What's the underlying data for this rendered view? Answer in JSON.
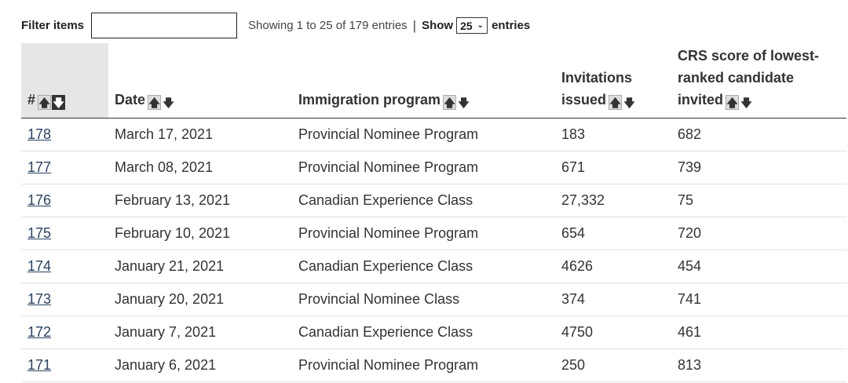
{
  "filter": {
    "label": "Filter items",
    "value": ""
  },
  "info": {
    "showing": "Showing 1 to 25 of 179 entries",
    "separator": "|",
    "show_label": "Show",
    "page_size": "25",
    "entries_label": "entries"
  },
  "headers": {
    "num": "#",
    "date": "Date",
    "program": "Immigration program",
    "invitations_line1": "Invitations",
    "invitations_line2": "issued",
    "crs_line1": "CRS score of lowest-",
    "crs_line2": "ranked candidate",
    "crs_line3": "invited"
  },
  "icons": {
    "up": "arrow-up-icon",
    "down": "arrow-down-icon",
    "select": "chevron-down-icon"
  },
  "rows": [
    {
      "num": "178",
      "date": "March 17, 2021",
      "program": "Provincial Nominee Program",
      "invitations": "183",
      "crs": "682"
    },
    {
      "num": "177",
      "date": "March 08, 2021",
      "program": "Provincial Nominee Program",
      "invitations": "671",
      "crs": "739"
    },
    {
      "num": "176",
      "date": "February 13, 2021",
      "program": "Canadian Experience Class",
      "invitations": "27,332",
      "crs": "75"
    },
    {
      "num": "175",
      "date": "February 10, 2021",
      "program": "Provincial Nominee Program",
      "invitations": "654",
      "crs": "720"
    },
    {
      "num": "174",
      "date": "January 21, 2021",
      "program": "Canadian Experience Class",
      "invitations": "4626",
      "crs": "454"
    },
    {
      "num": "173",
      "date": "January 20, 2021",
      "program": "Provincial Nominee Class",
      "invitations": "374",
      "crs": "741"
    },
    {
      "num": "172",
      "date": "January 7, 2021",
      "program": "Canadian Experience Class",
      "invitations": "4750",
      "crs": "461"
    },
    {
      "num": "171",
      "date": "January 6, 2021",
      "program": "Provincial Nominee Program",
      "invitations": "250",
      "crs": "813"
    }
  ]
}
